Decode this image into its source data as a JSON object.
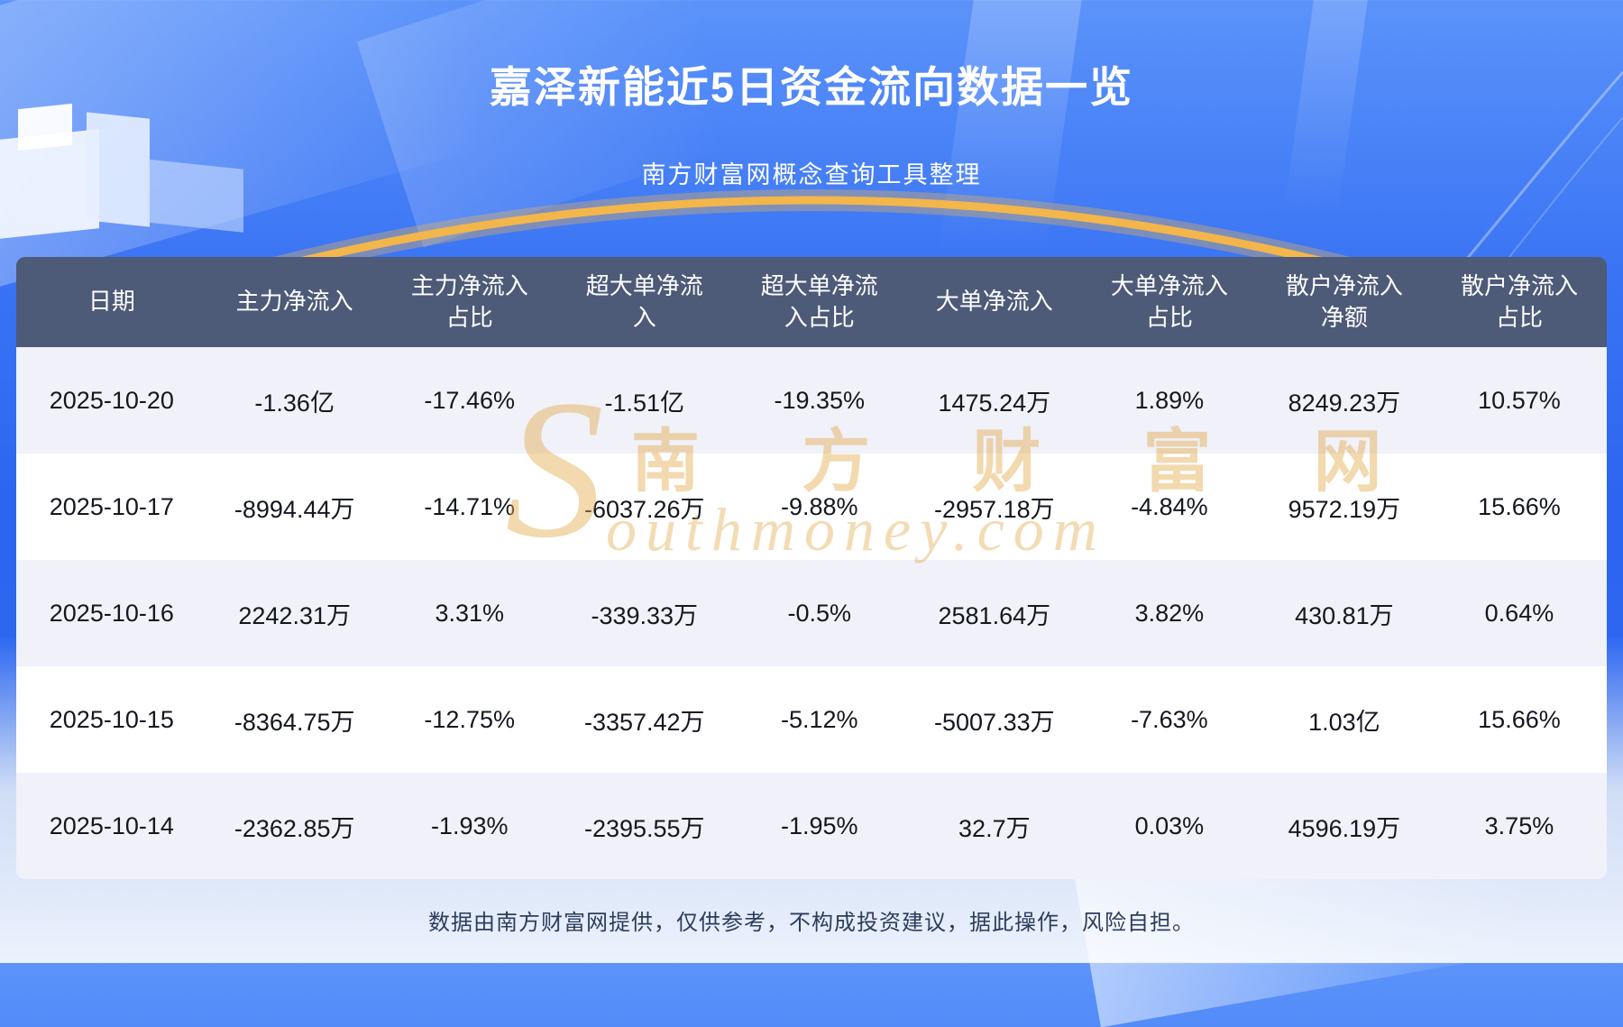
{
  "page": {
    "title": "嘉泽新能近5日资金流向数据一览",
    "subtitle": "南方财富网概念查询工具整理",
    "footer": "数据由南方财富网提供，仅供参考，不构成投资建议，据此操作，风险自担。"
  },
  "watermark": {
    "initial": "S",
    "cn": "南 方 财 富 网",
    "en": "outhmoney.com"
  },
  "colors": {
    "background_blue": "#2c66f0",
    "header_bg": "#4d5a78",
    "row_stripe": "#f0f1f9",
    "row_plain": "#ffffff",
    "accent_gold": "#f3b64a",
    "title_text": "#ffffff",
    "body_text": "#14171f",
    "footer_text": "#2d3c5c"
  },
  "chart_data": {
    "type": "table",
    "title": "嘉泽新能近5日资金流向数据一览",
    "subtitle": "南方财富网概念查询工具整理",
    "columns": [
      "日期",
      "主力净流入",
      "主力净流入占比",
      "超大单净流入",
      "超大单净流入占比",
      "大单净流入",
      "大单净流入占比",
      "散户净流入净额",
      "散户净流入占比"
    ],
    "rows": [
      [
        "2025-10-20",
        "-1.36亿",
        "-17.46%",
        "-1.51亿",
        "-19.35%",
        "1475.24万",
        "1.89%",
        "8249.23万",
        "10.57%"
      ],
      [
        "2025-10-17",
        "-8994.44万",
        "-14.71%",
        "-6037.26万",
        "-9.88%",
        "-2957.18万",
        "-4.84%",
        "9572.19万",
        "15.66%"
      ],
      [
        "2025-10-16",
        "2242.31万",
        "3.31%",
        "-339.33万",
        "-0.5%",
        "2581.64万",
        "3.82%",
        "430.81万",
        "0.64%"
      ],
      [
        "2025-10-15",
        "-8364.75万",
        "-12.75%",
        "-3357.42万",
        "-5.12%",
        "-5007.33万",
        "-7.63%",
        "1.03亿",
        "15.66%"
      ],
      [
        "2025-10-14",
        "-2362.85万",
        "-1.93%",
        "-2395.55万",
        "-1.95%",
        "32.7万",
        "0.03%",
        "4596.19万",
        "3.75%"
      ]
    ]
  }
}
